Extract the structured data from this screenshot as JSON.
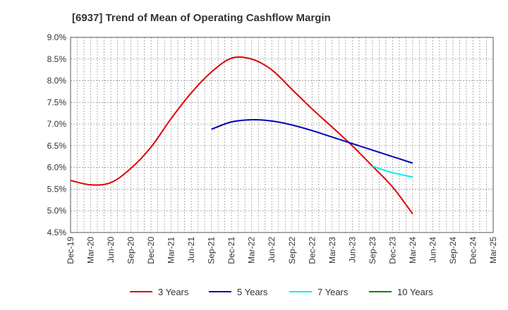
{
  "chart_data": {
    "type": "line",
    "title": "[6937]  Trend of Mean of Operating Cashflow Margin",
    "xlabel": "",
    "ylabel": "",
    "ylim": [
      4.5,
      9.0
    ],
    "yticks": [
      "9.0%",
      "8.5%",
      "8.0%",
      "7.5%",
      "7.0%",
      "6.5%",
      "6.0%",
      "5.5%",
      "5.0%",
      "4.5%"
    ],
    "ytick_values": [
      9.0,
      8.5,
      8.0,
      7.5,
      7.0,
      6.5,
      6.0,
      5.5,
      5.0,
      4.5
    ],
    "categories": [
      "Dec-19",
      "Mar-20",
      "Jun-20",
      "Sep-20",
      "Dec-20",
      "Mar-21",
      "Jun-21",
      "Sep-21",
      "Dec-21",
      "Mar-22",
      "Jun-22",
      "Sep-22",
      "Dec-22",
      "Mar-23",
      "Jun-23",
      "Sep-23",
      "Dec-23",
      "Mar-24",
      "Jun-24",
      "Sep-24",
      "Dec-24",
      "Mar-25"
    ],
    "grid": true,
    "legend": "bottom",
    "series": [
      {
        "name": "3 Years",
        "color": "#dd0000",
        "values": [
          5.7,
          5.6,
          5.65,
          5.98,
          6.47,
          7.13,
          7.72,
          8.2,
          8.52,
          8.5,
          8.25,
          7.8,
          7.35,
          6.93,
          6.5,
          6.03,
          5.55,
          4.93,
          null,
          null,
          null,
          null
        ]
      },
      {
        "name": "5 Years",
        "color": "#0000bb",
        "values": [
          null,
          null,
          null,
          null,
          null,
          null,
          null,
          6.88,
          7.05,
          7.1,
          7.07,
          6.98,
          6.85,
          6.7,
          6.55,
          6.4,
          6.25,
          6.1,
          null,
          null,
          null,
          null
        ]
      },
      {
        "name": "7 Years",
        "color": "#00eeee",
        "values": [
          null,
          null,
          null,
          null,
          null,
          null,
          null,
          null,
          null,
          null,
          null,
          null,
          null,
          null,
          null,
          6.03,
          5.88,
          5.78,
          null,
          null,
          null,
          null
        ]
      },
      {
        "name": "10 Years",
        "color": "#008000",
        "values": [
          null,
          null,
          null,
          null,
          null,
          null,
          null,
          null,
          null,
          null,
          null,
          null,
          null,
          null,
          null,
          null,
          null,
          null,
          null,
          null,
          null,
          null
        ]
      }
    ]
  }
}
